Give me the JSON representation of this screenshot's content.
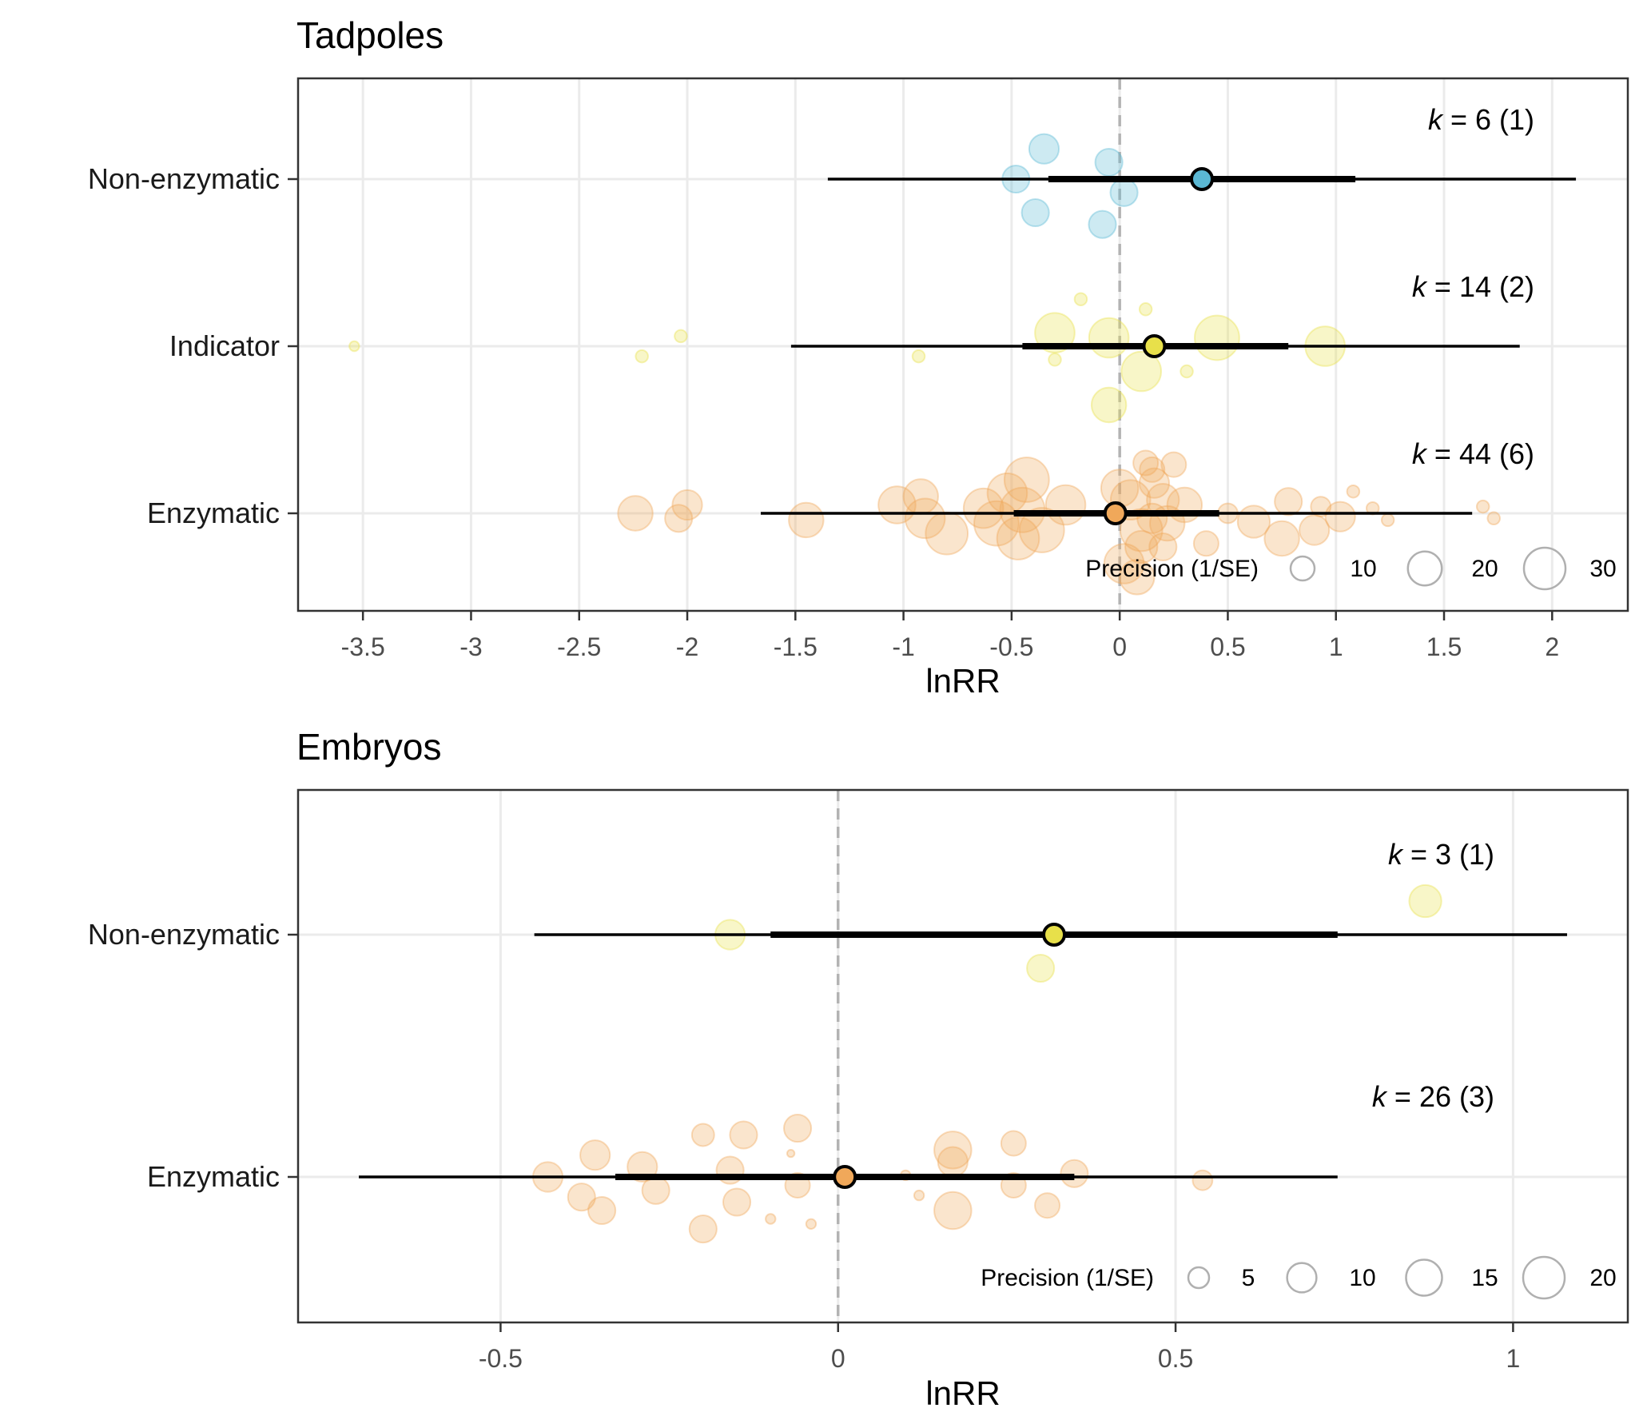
{
  "chart_data": [
    {
      "type": "scatter",
      "title": "Tadpoles",
      "xlabel": "lnRR",
      "ylabel": "",
      "xlim": [
        -3.8,
        2.35
      ],
      "xticks": [
        -3.5,
        -3,
        -2.5,
        -2,
        -1.5,
        -1,
        -0.5,
        0,
        0.5,
        1,
        1.5,
        2
      ],
      "xtick_labels": [
        "-3.5",
        "-3",
        "-2.5",
        "-2",
        "-1.5",
        "-1",
        "-0.5",
        "0",
        "0.5",
        "1",
        "1.5",
        "2"
      ],
      "reference_line": 0,
      "grid": true,
      "categories": [
        "Non-enzymatic",
        "Indicator",
        "Enzymatic"
      ],
      "groups": [
        {
          "name": "Non-enzymatic",
          "color": "#5bb8d4",
          "estimate": 0.38,
          "ci": [
            -0.33,
            1.09
          ],
          "pi": [
            -1.35,
            2.11
          ],
          "k_label": "= 6 (1)",
          "points": [
            [
              -0.35,
              0.18,
              12
            ],
            [
              -0.05,
              0.1,
              11
            ],
            [
              -0.48,
              0.0,
              11
            ],
            [
              0.02,
              -0.08,
              11
            ],
            [
              -0.39,
              -0.2,
              11
            ],
            [
              -0.08,
              -0.27,
              11
            ]
          ]
        },
        {
          "name": "Indicator",
          "color": "#e8e04a",
          "estimate": 0.16,
          "ci": [
            -0.45,
            0.78
          ],
          "pi": [
            -1.52,
            1.85
          ],
          "k_label": "= 14 (2)",
          "points": [
            [
              -3.54,
              0.0,
              4
            ],
            [
              -2.03,
              0.06,
              5
            ],
            [
              -2.21,
              -0.06,
              5
            ],
            [
              -0.18,
              0.28,
              5
            ],
            [
              0.12,
              0.22,
              5
            ],
            [
              -0.3,
              0.08,
              16
            ],
            [
              -0.05,
              0.05,
              16
            ],
            [
              0.45,
              0.05,
              18
            ],
            [
              0.95,
              0.0,
              16
            ],
            [
              -0.93,
              -0.06,
              5
            ],
            [
              -0.3,
              -0.08,
              5
            ],
            [
              0.1,
              -0.15,
              16
            ],
            [
              0.31,
              -0.15,
              5
            ],
            [
              -0.05,
              -0.35,
              14
            ]
          ]
        },
        {
          "name": "Enzymatic",
          "color": "#f0a85a",
          "estimate": -0.02,
          "ci": [
            -0.49,
            0.46
          ],
          "pi": [
            -1.66,
            1.63
          ],
          "k_label": "= 44 (6)",
          "points": [
            [
              -2.24,
              0.0,
              14
            ],
            [
              -2.0,
              0.05,
              12
            ],
            [
              -2.04,
              -0.03,
              11
            ],
            [
              -1.45,
              -0.04,
              14
            ],
            [
              -1.03,
              0.05,
              15
            ],
            [
              -0.92,
              0.1,
              14
            ],
            [
              -0.9,
              -0.03,
              16
            ],
            [
              -0.8,
              -0.12,
              17
            ],
            [
              -0.63,
              0.03,
              16
            ],
            [
              -0.57,
              -0.06,
              18
            ],
            [
              -0.52,
              0.12,
              16
            ],
            [
              -0.47,
              -0.15,
              17
            ],
            [
              -0.45,
              0.02,
              18
            ],
            [
              -0.43,
              0.2,
              18
            ],
            [
              -0.36,
              -0.1,
              18
            ],
            [
              -0.25,
              0.05,
              16
            ],
            [
              0.0,
              0.15,
              15
            ],
            [
              0.05,
              0.08,
              16
            ],
            [
              0.1,
              -0.1,
              17
            ],
            [
              0.12,
              0.3,
              10
            ],
            [
              0.15,
              0.26,
              10
            ],
            [
              0.16,
              0.18,
              12
            ],
            [
              0.2,
              0.08,
              13
            ],
            [
              0.25,
              0.29,
              10
            ],
            [
              0.1,
              -0.2,
              13
            ],
            [
              0.2,
              -0.2,
              11
            ],
            [
              0.22,
              -0.06,
              14
            ],
            [
              0.15,
              -0.03,
              12
            ],
            [
              0.08,
              -0.38,
              14
            ],
            [
              0.02,
              -0.3,
              16
            ],
            [
              0.3,
              0.05,
              14
            ],
            [
              0.4,
              -0.18,
              10
            ],
            [
              0.5,
              0.0,
              8
            ],
            [
              0.62,
              -0.05,
              13
            ],
            [
              0.78,
              0.07,
              11
            ],
            [
              0.75,
              -0.15,
              14
            ],
            [
              0.9,
              -0.1,
              12
            ],
            [
              1.02,
              -0.02,
              12
            ],
            [
              0.93,
              0.04,
              8
            ],
            [
              1.08,
              0.13,
              5
            ],
            [
              1.17,
              0.03,
              5
            ],
            [
              1.24,
              -0.04,
              5
            ],
            [
              1.68,
              0.04,
              5
            ],
            [
              1.73,
              -0.03,
              5
            ]
          ]
        }
      ],
      "legend": {
        "title": "Precision (1/SE)",
        "placement": "bottom-right",
        "sizes": [
          10,
          20,
          30
        ],
        "size_labels": [
          "10",
          "20",
          "30"
        ]
      }
    },
    {
      "type": "scatter",
      "title": "Embryos",
      "xlabel": "lnRR",
      "ylabel": "",
      "xlim": [
        -0.8,
        1.17
      ],
      "xticks": [
        -0.5,
        0,
        0.5,
        1
      ],
      "xtick_labels": [
        "-0.5",
        "0",
        "0.5",
        "1"
      ],
      "reference_line": 0,
      "grid": true,
      "categories": [
        "Non-enzymatic",
        "Enzymatic"
      ],
      "groups": [
        {
          "name": "Non-enzymatic",
          "color": "#e8e04a",
          "estimate": 0.32,
          "ci": [
            -0.1,
            0.74
          ],
          "pi": [
            -0.45,
            1.08
          ],
          "k_label": "= 3 (1)",
          "points": [
            [
              0.87,
              0.2,
              13
            ],
            [
              -0.16,
              0.0,
              12
            ],
            [
              0.3,
              -0.2,
              11
            ]
          ]
        },
        {
          "name": "Enzymatic",
          "color": "#f0a85a",
          "estimate": 0.01,
          "ci": [
            -0.33,
            0.35
          ],
          "pi": [
            -0.71,
            0.74
          ],
          "k_label": "= 26 (3)",
          "points": [
            [
              -0.43,
              0.0,
              12
            ],
            [
              -0.36,
              0.13,
              12
            ],
            [
              -0.29,
              0.06,
              12
            ],
            [
              -0.27,
              -0.08,
              11
            ],
            [
              -0.38,
              -0.12,
              11
            ],
            [
              -0.35,
              -0.2,
              11
            ],
            [
              -0.2,
              0.25,
              9
            ],
            [
              -0.14,
              0.25,
              11
            ],
            [
              -0.06,
              0.29,
              11
            ],
            [
              -0.07,
              0.14,
              3
            ],
            [
              -0.16,
              0.04,
              11
            ],
            [
              -0.06,
              -0.05,
              10
            ],
            [
              -0.15,
              -0.15,
              11
            ],
            [
              -0.1,
              -0.25,
              4
            ],
            [
              -0.04,
              -0.28,
              4
            ],
            [
              -0.2,
              -0.31,
              11
            ],
            [
              0.1,
              0.01,
              4
            ],
            [
              0.12,
              -0.11,
              4
            ],
            [
              0.17,
              0.16,
              15
            ],
            [
              0.17,
              0.09,
              12
            ],
            [
              0.26,
              0.2,
              10
            ],
            [
              0.26,
              -0.05,
              10
            ],
            [
              0.35,
              0.02,
              11
            ],
            [
              0.31,
              -0.17,
              10
            ],
            [
              0.17,
              -0.2,
              15
            ],
            [
              0.54,
              -0.02,
              8
            ]
          ]
        }
      ],
      "legend": {
        "title": "Precision (1/SE)",
        "placement": "bottom-right",
        "sizes": [
          5,
          10,
          15,
          20
        ],
        "size_labels": [
          "5",
          "10",
          "15",
          "20"
        ]
      }
    }
  ]
}
